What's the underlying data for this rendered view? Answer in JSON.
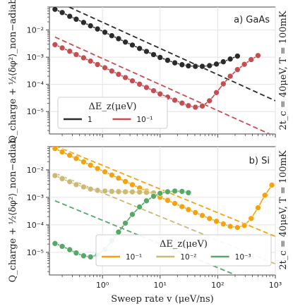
{
  "figure": {
    "xlabel": "Sweep rate v (μeV/ns)",
    "ylabel": "Q_charge + ½⟨δφ²⟩_non−adiab",
    "x_ticks": [
      "10⁰",
      "10¹",
      "10²",
      "10³"
    ],
    "y_ticks": [
      "10⁻⁵",
      "10⁻⁴",
      "10⁻³",
      "10⁻²"
    ]
  },
  "chart_data": [
    {
      "type": "line",
      "panel_label": "a) GaAs",
      "right_label": "2t_c = 40μeV, T = 100mK",
      "xscale": "log",
      "yscale": "log",
      "xlim": [
        0.12,
        1000
      ],
      "ylim": [
        1.5e-06,
        0.07
      ],
      "grid": true,
      "legend": {
        "title": "ΔE_z(μeV)",
        "placement": "bottom-left",
        "entries": [
          "1",
          "10⁻¹"
        ]
      },
      "series": [
        {
          "name": "1",
          "color": "#2b2b2b",
          "points": [
            [
              0.15,
              0.058
            ],
            [
              0.2,
              0.044
            ],
            [
              0.27,
              0.032
            ],
            [
              0.35,
              0.025
            ],
            [
              0.47,
              0.019
            ],
            [
              0.62,
              0.0143
            ],
            [
              0.82,
              0.0109
            ],
            [
              1.1,
              0.0083
            ],
            [
              1.45,
              0.0062
            ],
            [
              1.9,
              0.0048
            ],
            [
              2.5,
              0.0036
            ],
            [
              3.3,
              0.0028
            ],
            [
              4.4,
              0.0021
            ],
            [
              5.8,
              0.00163
            ],
            [
              7.7,
              0.00125
            ],
            [
              10,
              0.00098
            ],
            [
              13.5,
              0.00077
            ],
            [
              18,
              0.00062
            ],
            [
              24,
              0.00053
            ],
            [
              31,
              0.00048
            ],
            [
              41,
              0.00046
            ],
            [
              54,
              0.00046
            ],
            [
              72,
              0.00049
            ],
            [
              95,
              0.00056
            ],
            [
              125,
              0.00068
            ],
            [
              165,
              0.00086
            ],
            [
              220,
              0.0011
            ]
          ],
          "asymptote": [
            [
              0.15,
              0.12
            ],
            [
              1000,
              2.5e-05
            ]
          ]
        },
        {
          "name": "10⁻¹",
          "color": "#c44e52",
          "points": [
            [
              0.15,
              0.0029
            ],
            [
              0.2,
              0.0022
            ],
            [
              0.27,
              0.00165
            ],
            [
              0.35,
              0.00125
            ],
            [
              0.47,
              0.00095
            ],
            [
              0.62,
              0.00072
            ],
            [
              0.82,
              0.00054
            ],
            [
              1.1,
              0.00041
            ],
            [
              1.45,
              0.00031
            ],
            [
              1.9,
              0.000235
            ],
            [
              2.5,
              0.000178
            ],
            [
              3.3,
              0.000135
            ],
            [
              4.4,
              0.000102
            ],
            [
              5.8,
              7.7e-05
            ],
            [
              7.7,
              5.85e-05
            ],
            [
              10,
              4.45e-05
            ],
            [
              13.5,
              3.4e-05
            ],
            [
              18,
              2.62e-05
            ],
            [
              24,
              2.05e-05
            ],
            [
              31,
              1.65e-05
            ],
            [
              41,
              1.45e-05
            ],
            [
              54,
              1.6e-05
            ],
            [
              72,
              2.5e-05
            ],
            [
              95,
              5e-05
            ],
            [
              125,
              0.000105
            ],
            [
              165,
              0.0002
            ],
            [
              220,
              0.00035
            ],
            [
              290,
              0.00055
            ],
            [
              380,
              0.00082
            ],
            [
              500,
              0.00115
            ]
          ],
          "asymptote": [
            [
              0.15,
              0.0055
            ],
            [
              1000,
              1.2e-06
            ]
          ]
        }
      ]
    },
    {
      "type": "line",
      "panel_label": "b) Si",
      "right_label": "2t_c = 40μeV, T = 100mK",
      "xscale": "log",
      "yscale": "log",
      "xlim": [
        0.12,
        1000
      ],
      "ylim": [
        1.5e-06,
        0.07
      ],
      "grid": true,
      "legend": {
        "title": "ΔE_z(μeV)",
        "placement": "bottom-right",
        "entries": [
          "10⁻¹",
          "10⁻²",
          "10⁻³"
        ]
      },
      "series": [
        {
          "name": "10⁻¹",
          "color": "#f5a30d",
          "points": [
            [
              0.15,
              0.06
            ],
            [
              0.2,
              0.045
            ],
            [
              0.27,
              0.034
            ],
            [
              0.35,
              0.026
            ],
            [
              0.47,
              0.0196
            ],
            [
              0.62,
              0.0148
            ],
            [
              0.82,
              0.0112
            ],
            [
              1.1,
              0.0085
            ],
            [
              1.45,
              0.0065
            ],
            [
              1.9,
              0.005
            ],
            [
              2.5,
              0.0038
            ],
            [
              3.3,
              0.0029
            ],
            [
              4.4,
              0.0022
            ],
            [
              5.8,
              0.0017
            ],
            [
              7.7,
              0.0013
            ],
            [
              10,
              0.00101
            ],
            [
              13.5,
              0.00078
            ],
            [
              18,
              0.0006
            ],
            [
              24,
              0.00046
            ],
            [
              31,
              0.00036
            ],
            [
              41,
              0.00028
            ],
            [
              54,
              0.00022
            ],
            [
              72,
              0.00017
            ],
            [
              95,
              0.000135
            ],
            [
              125,
              0.000108
            ],
            [
              165,
              8.8e-05
            ],
            [
              220,
              8e-05
            ],
            [
              290,
              9.5e-05
            ],
            [
              380,
              0.00017
            ],
            [
              500,
              0.00042
            ],
            [
              660,
              0.0012
            ],
            [
              870,
              0.0028
            ]
          ],
          "asymptote": [
            [
              0.15,
              0.075
            ],
            [
              1000,
              3.8e-05
            ]
          ]
        },
        {
          "name": "10⁻²",
          "color": "#ccb974",
          "points": [
            [
              0.15,
              0.0062
            ],
            [
              0.2,
              0.0048
            ],
            [
              0.27,
              0.0037
            ],
            [
              0.35,
              0.0029
            ],
            [
              0.47,
              0.0024
            ],
            [
              0.62,
              0.002
            ],
            [
              0.82,
              0.0018
            ],
            [
              1.1,
              0.0017
            ],
            [
              1.45,
              0.00165
            ],
            [
              1.9,
              0.00162
            ],
            [
              2.5,
              0.0016
            ],
            [
              3.3,
              0.00158
            ],
            [
              4.4,
              0.00156
            ],
            [
              5.8,
              0.00152
            ],
            [
              7.7,
              0.00146
            ]
          ],
          "asymptote": [
            [
              0.15,
              0.0075
            ],
            [
              1000,
              3.8e-06
            ]
          ]
        },
        {
          "name": "10⁻³",
          "color": "#55a868",
          "points": [
            [
              0.15,
              2.1e-05
            ],
            [
              0.2,
              1.65e-05
            ],
            [
              0.27,
              1.25e-05
            ],
            [
              0.35,
              9.5e-06
            ],
            [
              0.47,
              7.5e-06
            ],
            [
              0.62,
              6.8e-06
            ],
            [
              0.82,
              8e-06
            ],
            [
              1.1,
              1.3e-05
            ],
            [
              1.45,
              2.6e-05
            ],
            [
              1.9,
              5.5e-05
            ],
            [
              2.5,
              0.000115
            ],
            [
              3.3,
              0.00024
            ],
            [
              4.4,
              0.00045
            ],
            [
              5.8,
              0.00075
            ],
            [
              7.7,
              0.0011
            ],
            [
              10,
              0.0014
            ],
            [
              13.5,
              0.0016
            ],
            [
              18,
              0.0017
            ],
            [
              24,
              0.00165
            ],
            [
              31,
              0.00148
            ]
          ],
          "asymptote": [
            [
              0.15,
              0.00075
            ],
            [
              1000,
              3.8e-07
            ]
          ]
        }
      ]
    }
  ]
}
